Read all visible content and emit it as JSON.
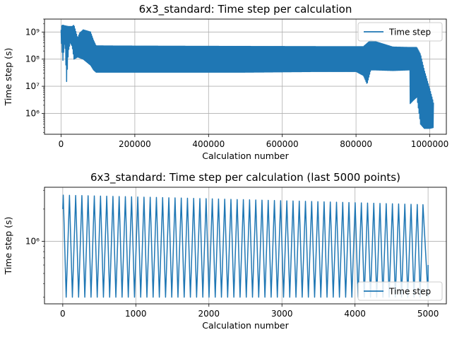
{
  "chart_data": [
    {
      "type": "line",
      "title": "6x3_standard: Time step per calculation",
      "xlabel": "Calculation number",
      "ylabel": "Time step (s)",
      "xlim": [
        -45000,
        1045000
      ],
      "ylim": [
        170000,
        3000000000
      ],
      "yscale": "log",
      "grid": true,
      "legend": {
        "entries": [
          "Time step"
        ],
        "position": "top-right"
      },
      "x_ticks": [
        0,
        200000,
        400000,
        600000,
        800000,
        1000000
      ],
      "x_tick_labels": [
        "0",
        "200000",
        "400000",
        "600000",
        "800000",
        "1000000"
      ],
      "y_ticks": [
        1000000,
        10000000,
        100000000,
        1000000000
      ],
      "y_tick_labels": [
        "10⁶",
        "10⁷",
        "10⁸",
        "10⁹"
      ],
      "series": [
        {
          "name": "Time step",
          "color": "#1f77b4",
          "upper_envelope": {
            "x": [
              0,
              1500,
              5000,
              10000,
              20000,
              30000,
              35000,
              45000,
              50000,
              60000,
              70000,
              80000,
              88000,
              95000,
              150000,
              300000,
              500000,
              700000,
              820000,
              840000,
              900000,
              945000,
              955000,
              965000,
              975000,
              985000,
              1000000,
              1010000
            ],
            "y": [
              1200000000,
              1700000000,
              1800000000,
              1700000000,
              1600000000,
              1600000000,
              1800000000,
              600000000,
              900000000,
              1200000000,
              1100000000,
              1000000000,
              500000000,
              310000000,
              305000000,
              300000000,
              295000000,
              290000000,
              290000000,
              500000000,
              280000000,
              270000000,
              270000000,
              270000000,
              150000000,
              40000000,
              8000000,
              2500000
            ]
          },
          "lower_envelope": {
            "x": [
              0,
              1500,
              5000,
              10000,
              15000,
              20000,
              25000,
              30000,
              35000,
              45000,
              60000,
              80000,
              88000,
              95000,
              150000,
              300000,
              500000,
              700000,
              800000,
              820000,
              830000,
              840000,
              850000,
              900000,
              945000,
              947000,
              955000,
              965000,
              975000,
              985000,
              1000000,
              1010000
            ],
            "y": [
              600000000,
              300000000,
              90000000,
              500000000,
              15000000,
              200000000,
              400000000,
              300000000,
              100000000,
              120000000,
              100000000,
              60000000,
              40000000,
              33000000,
              33000000,
              33000000,
              33000000,
              35000000,
              35000000,
              25000000,
              12000000,
              40000000,
              40000000,
              38000000,
              40000000,
              2300000,
              3000000,
              4000000,
              400000,
              280000,
              280000,
              300000
            ]
          }
        }
      ]
    },
    {
      "type": "line",
      "title": "6x3_standard: Time step per calculation (last 5000 points)",
      "xlabel": "Calculation number",
      "ylabel": "Time step (s)",
      "xlim": [
        -250,
        5250
      ],
      "ylim": [
        260000,
        3200000
      ],
      "yscale": "log",
      "grid": true,
      "legend": {
        "entries": [
          "Time step"
        ],
        "position": "bottom-right"
      },
      "x_ticks": [
        0,
        1000,
        2000,
        3000,
        4000,
        5000
      ],
      "x_tick_labels": [
        "0",
        "1000",
        "2000",
        "3000",
        "4000",
        "5000"
      ],
      "y_ticks": [
        1000000
      ],
      "y_tick_labels": [
        "10⁶"
      ],
      "series": [
        {
          "name": "Time step",
          "color": "#1f77b4",
          "oscillation": {
            "x_start": 0,
            "x_end": 5000,
            "period": 85,
            "min_y": 300000,
            "max_y_start": 2700000,
            "max_y_end": 2200000
          }
        }
      ]
    }
  ]
}
